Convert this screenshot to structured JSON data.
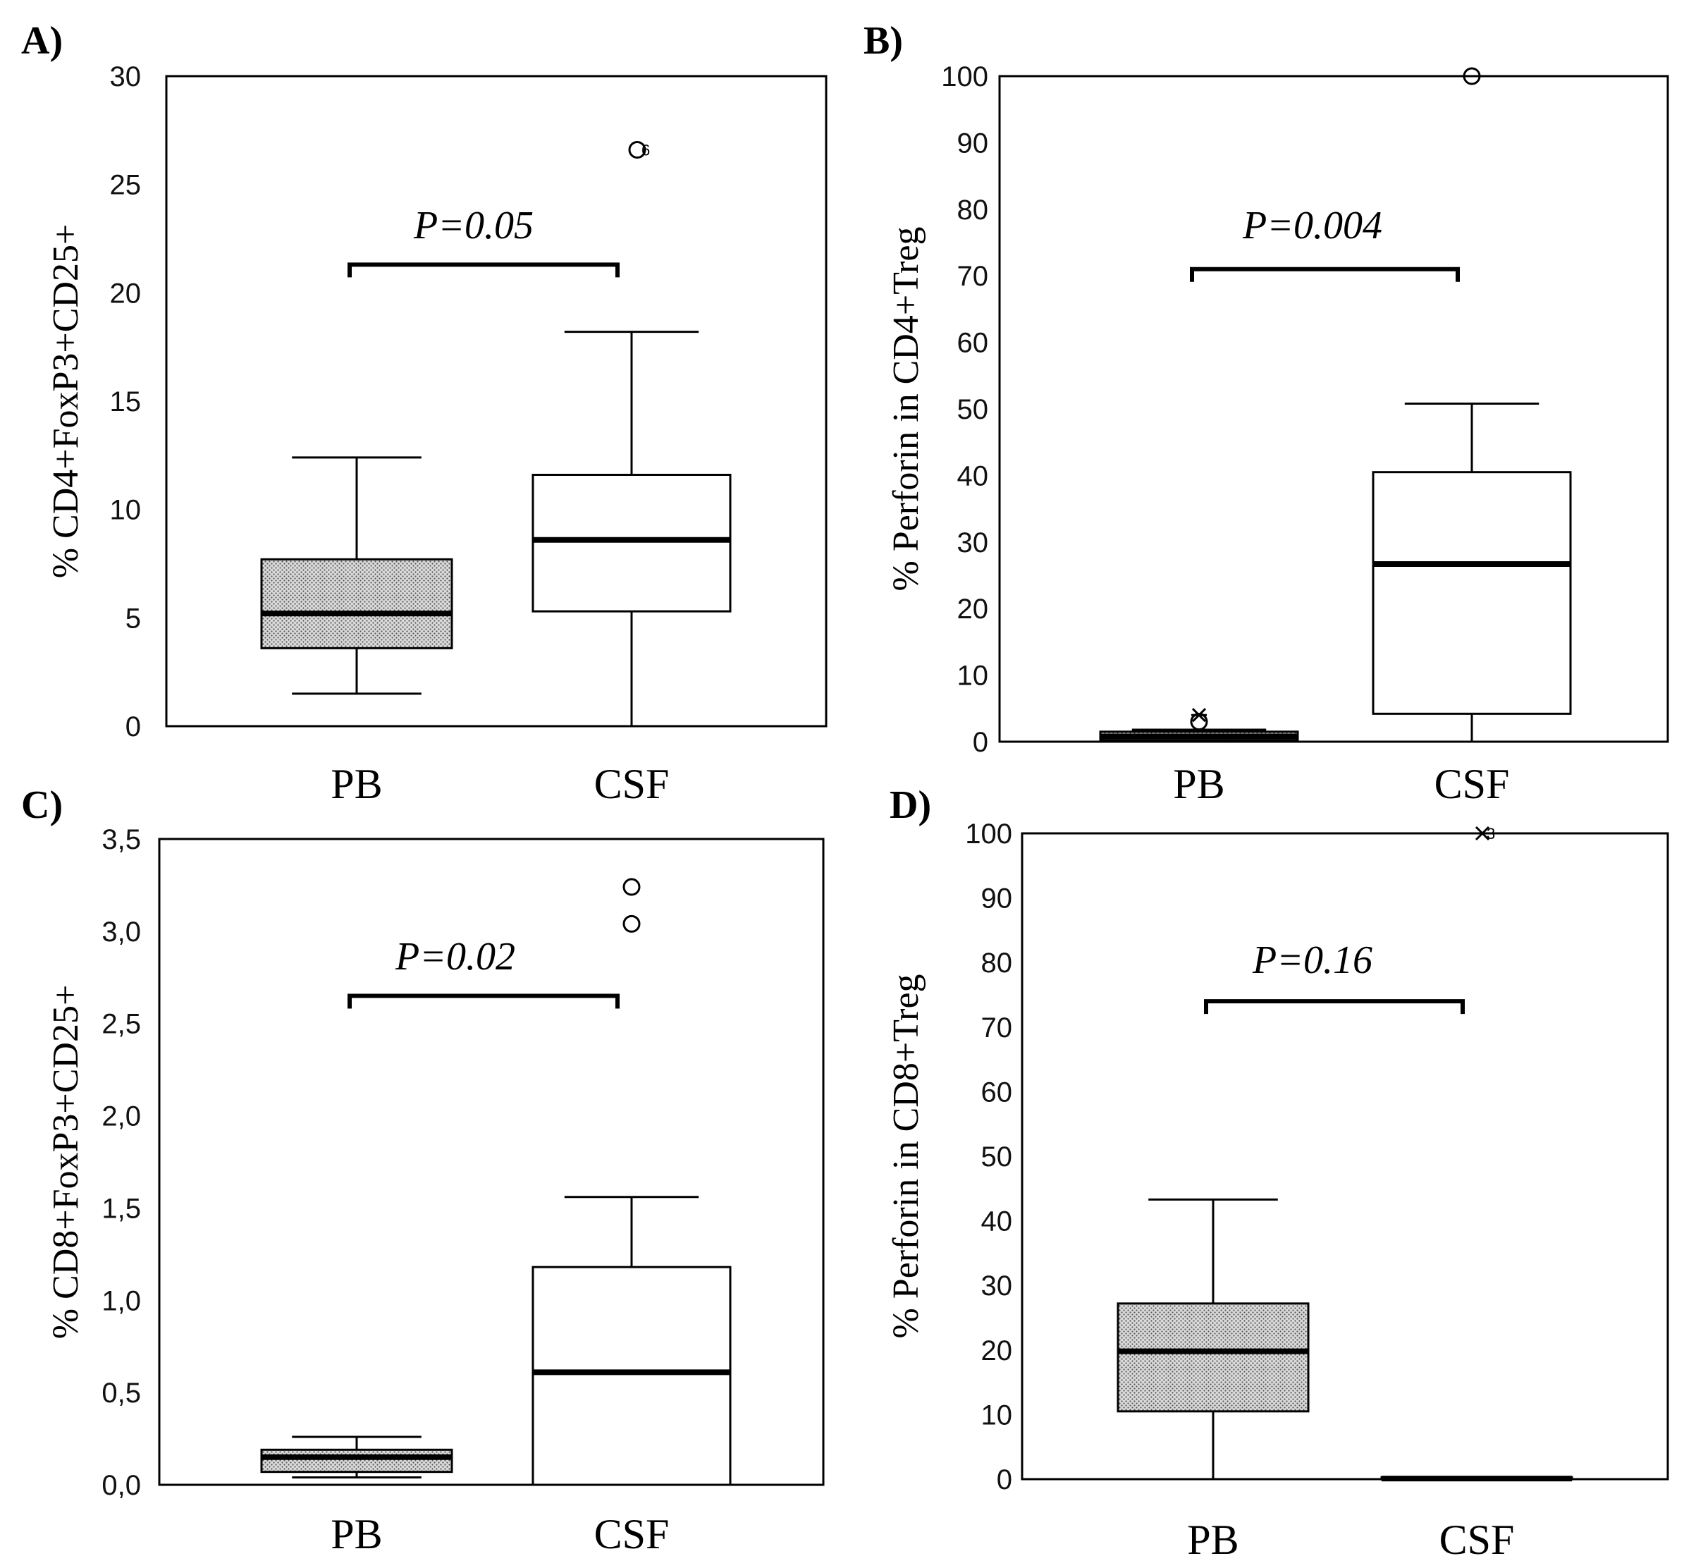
{
  "colors": {
    "stroke": "#000000",
    "box_fill_pb": "#cfcfcf",
    "box_fill_csf": "#ffffff",
    "background": "#ffffff"
  },
  "chart_data": [
    {
      "panel": "A)",
      "type": "box",
      "ylabel": "% CD4+FoxP3+CD25+",
      "ylim": [
        0,
        30
      ],
      "yticks": [
        "0",
        "5",
        "10",
        "15",
        "20",
        "25",
        "30"
      ],
      "ytick_values": [
        0,
        5,
        10,
        15,
        20,
        25,
        30
      ],
      "categories": [
        "PB",
        "CSF"
      ],
      "p_value": "P=0.05",
      "bracket_y": 21.3,
      "boxes": [
        {
          "category": "PB",
          "min": 1.5,
          "q1": 3.6,
          "median": 5.2,
          "q3": 7.7,
          "max": 12.4,
          "fill": "hatched",
          "outliers": []
        },
        {
          "category": "CSF",
          "min": 0,
          "q1": 5.3,
          "median": 8.6,
          "q3": 11.6,
          "max": 18.2,
          "fill": "white",
          "outliers": [
            {
              "y": 26.6,
              "marker": "circle",
              "label": "6"
            }
          ]
        }
      ]
    },
    {
      "panel": "B)",
      "type": "box",
      "ylabel": "% Perforin in CD4+Treg",
      "ylim": [
        0,
        100
      ],
      "yticks": [
        "0",
        "10",
        "20",
        "30",
        "40",
        "50",
        "60",
        "70",
        "80",
        "90",
        "100"
      ],
      "ytick_values": [
        0,
        10,
        20,
        30,
        40,
        50,
        60,
        70,
        80,
        90,
        100
      ],
      "categories": [
        "PB",
        "CSF"
      ],
      "p_value": "P=0.004",
      "bracket_y": 71,
      "boxes": [
        {
          "category": "PB",
          "min": 0,
          "q1": 0.2,
          "median": 0.8,
          "q3": 1.5,
          "max": 1.8,
          "fill": "hatched",
          "outliers": [
            {
              "y": 3,
              "marker": "circle"
            },
            {
              "y": 4,
              "marker": "star"
            }
          ]
        },
        {
          "category": "CSF",
          "min": 0,
          "q1": 4.2,
          "median": 26.7,
          "q3": 40.5,
          "max": 50.8,
          "fill": "white",
          "outliers": [
            {
              "y": 100,
              "marker": "circle"
            }
          ]
        }
      ]
    },
    {
      "panel": "C)",
      "type": "box",
      "ylabel": "% CD8+FoxP3+CD25+",
      "ylim": [
        0,
        3.5
      ],
      "yticks": [
        "0,0",
        "0,5",
        "1,0",
        "1,5",
        "2,0",
        "2,5",
        "3,0",
        "3,5"
      ],
      "ytick_values": [
        0,
        0.5,
        1.0,
        1.5,
        2.0,
        2.5,
        3.0,
        3.5
      ],
      "categories": [
        "PB",
        "CSF"
      ],
      "p_value": "P=0.02",
      "bracket_y": 2.65,
      "boxes": [
        {
          "category": "PB",
          "min": 0.04,
          "q1": 0.07,
          "median": 0.15,
          "q3": 0.19,
          "max": 0.26,
          "fill": "hatched",
          "outliers": []
        },
        {
          "category": "CSF",
          "min": 0,
          "q1": 0,
          "median": 0.61,
          "q3": 1.18,
          "max": 1.56,
          "fill": "white",
          "outliers": [
            {
              "y": 3.04,
              "marker": "circle"
            },
            {
              "y": 3.24,
              "marker": "circle"
            }
          ]
        }
      ]
    },
    {
      "panel": "D)",
      "type": "box",
      "ylabel": "% Perforin in CD8+Treg",
      "ylim": [
        0,
        100
      ],
      "yticks": [
        "0",
        "10",
        "20",
        "30",
        "40",
        "50",
        "60",
        "70",
        "80",
        "90",
        "100"
      ],
      "ytick_values": [
        0,
        10,
        20,
        30,
        40,
        50,
        60,
        70,
        80,
        90,
        100
      ],
      "categories": [
        "PB",
        "CSF"
      ],
      "p_value": "P=0.16",
      "bracket_y": 74,
      "boxes": [
        {
          "category": "PB",
          "min": 0,
          "q1": 10.5,
          "median": 19.8,
          "q3": 27.2,
          "max": 43.3,
          "fill": "hatched",
          "outliers": []
        },
        {
          "category": "CSF",
          "min": 0,
          "q1": 0,
          "median": 0.1,
          "q3": 0.3,
          "max": 0.3,
          "fill": "white",
          "outliers": [
            {
              "y": 100,
              "marker": "star",
              "label": "3"
            }
          ]
        }
      ]
    }
  ]
}
